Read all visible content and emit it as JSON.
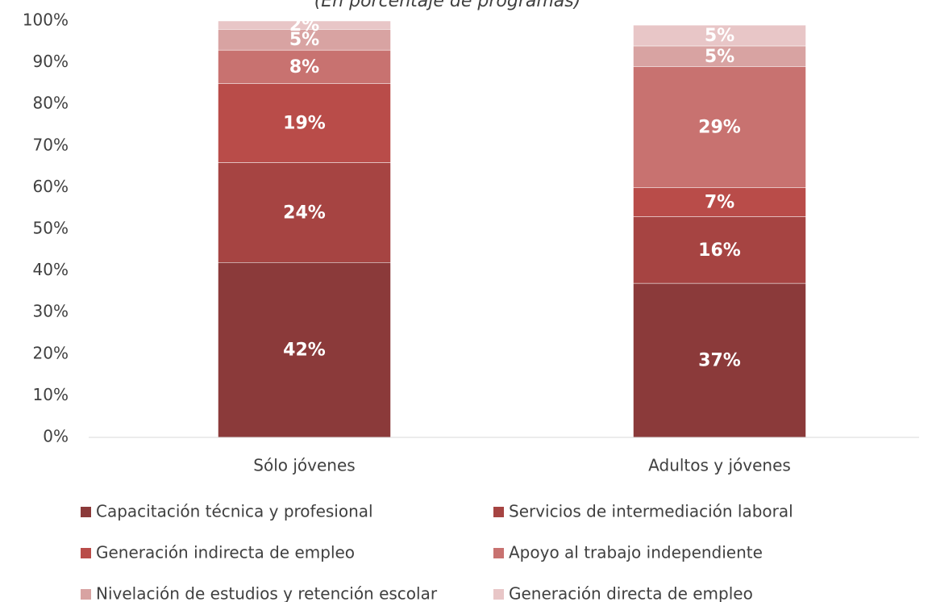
{
  "chart_data": {
    "type": "stacked_bar",
    "subtitle": "(En porcentaje de programas)",
    "categories": [
      "Sólo jóvenes",
      "Adultos y jóvenes"
    ],
    "series": [
      {
        "name": "Capacitación técnica y profesional",
        "color": "#8b3a3a",
        "values": [
          42,
          37
        ],
        "value_labels": [
          "42%",
          "37%"
        ]
      },
      {
        "name": "Servicios de intermediación laboral",
        "color": "#a64442",
        "values": [
          24,
          16
        ],
        "value_labels": [
          "24%",
          "16%"
        ]
      },
      {
        "name": "Generación indirecta de empleo",
        "color": "#b94c49",
        "values": [
          19,
          7
        ],
        "value_labels": [
          "19%",
          "7%"
        ]
      },
      {
        "name": "Apoyo al trabajo independiente",
        "color": "#c87270",
        "values": [
          8,
          29
        ],
        "value_labels": [
          "8%",
          "29%"
        ]
      },
      {
        "name": "Nivelación de estudios y retención escolar",
        "color": "#d8a3a2",
        "values": [
          5,
          5
        ],
        "value_labels": [
          "5%",
          "5%"
        ]
      },
      {
        "name": "Generación directa de empleo",
        "color": "#e8c6c7",
        "values": [
          2,
          5
        ],
        "value_labels": [
          "2%",
          "5%"
        ]
      }
    ],
    "ylim": [
      0,
      100
    ],
    "yticks": [
      {
        "value": 0,
        "label": "0%"
      },
      {
        "value": 10,
        "label": "10%"
      },
      {
        "value": 20,
        "label": "20%"
      },
      {
        "value": 30,
        "label": "30%"
      },
      {
        "value": 40,
        "label": "40%"
      },
      {
        "value": 50,
        "label": "50%"
      },
      {
        "value": 60,
        "label": "60%"
      },
      {
        "value": 70,
        "label": "70%"
      },
      {
        "value": 80,
        "label": "80%"
      },
      {
        "value": 90,
        "label": "90%"
      },
      {
        "value": 100,
        "label": "100%"
      }
    ],
    "grid": false,
    "legend": "bottom"
  }
}
